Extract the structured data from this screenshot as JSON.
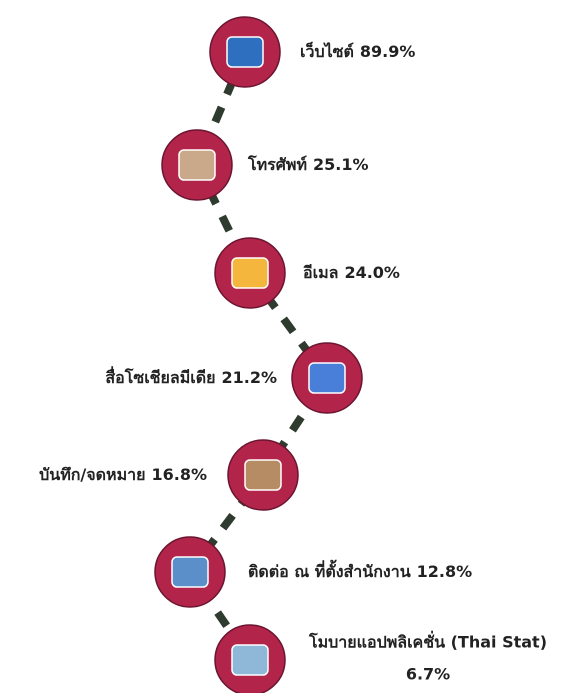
{
  "items": [
    {
      "label": "เว็บไซต์",
      "value": "89.9%"
    },
    {
      "label": "โทรศัพท์",
      "value": "25.1%"
    },
    {
      "label": "อีเมล",
      "value": "24.0%"
    },
    {
      "label": "สื่อโซเชียลมีเดีย",
      "value": "21.2%"
    },
    {
      "label": "บันทึก/จดหมาย",
      "value": "16.8%"
    },
    {
      "label": "ติดต่อ ณ ที่ตั้งสำนักงาน",
      "value": "12.8%"
    },
    {
      "label": "โมบายแอปพลิเคชั่น (Thai Stat)",
      "value": "6.7%"
    }
  ]
}
